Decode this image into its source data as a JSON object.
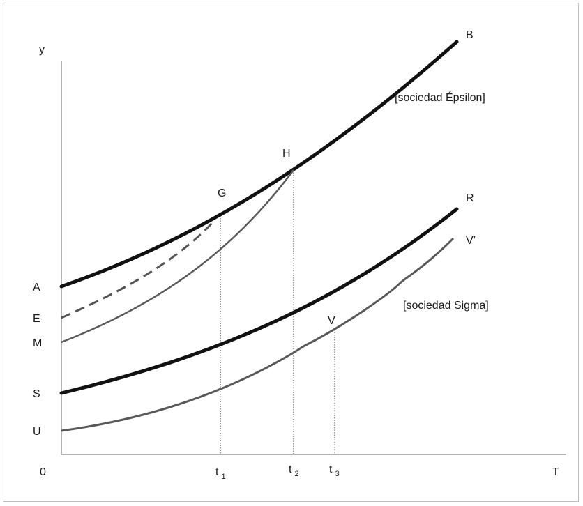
{
  "axes": {
    "y_label": "y",
    "x_label": "T",
    "origin_label": "0"
  },
  "y_axis_labels": {
    "A": "A",
    "E": "E",
    "M": "M",
    "S": "S",
    "U": "U"
  },
  "time_labels": [
    {
      "base": "t",
      "sub": "1"
    },
    {
      "base": "t",
      "sub": "2"
    },
    {
      "base": "t",
      "sub": "3"
    }
  ],
  "curve_labels": {
    "B": "B",
    "R": "R",
    "V_prime": "V′"
  },
  "point_labels": {
    "G": "G",
    "H": "H",
    "V": "V"
  },
  "region_labels": {
    "epsilon": "[sociedad Épsilon]",
    "sigma": "[sociedad Sigma]"
  },
  "colors": {
    "thick_curve": "#111111",
    "thin_curve": "#595959",
    "axis": "#9a9a9a",
    "frame": "#bfbfbf"
  }
}
